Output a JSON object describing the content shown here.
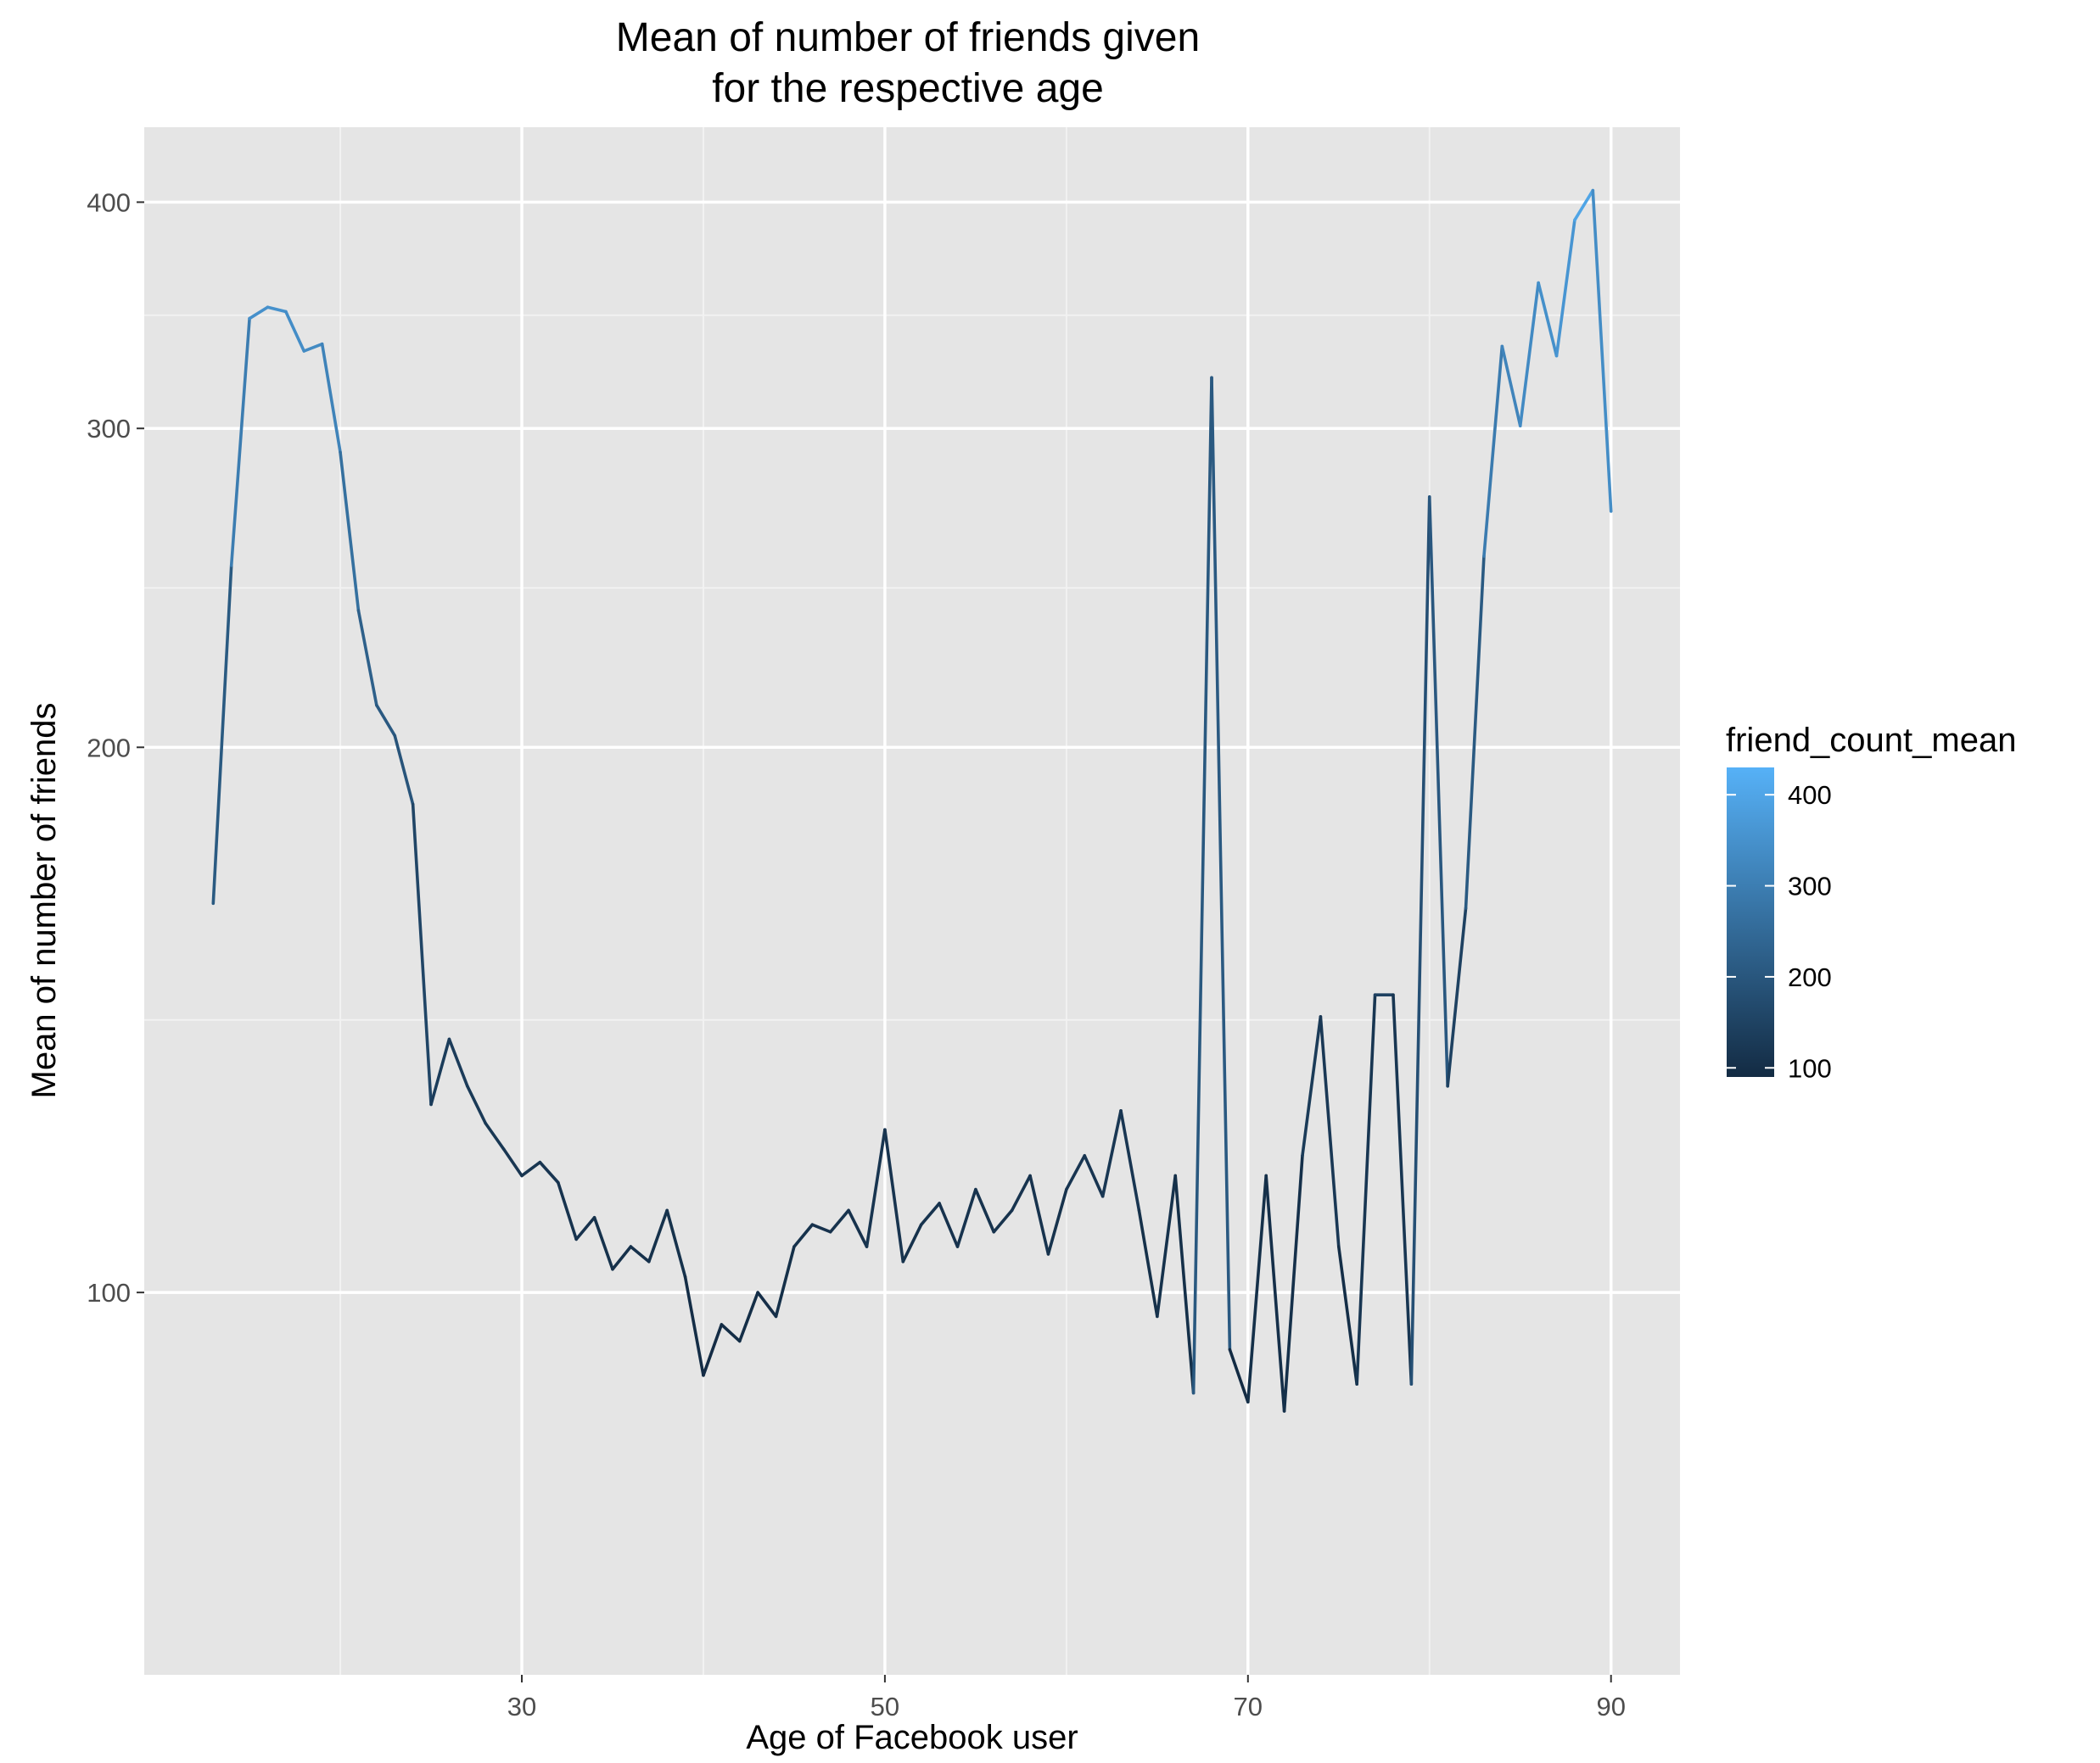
{
  "chart_data": {
    "type": "line",
    "title": [
      "Mean of number of friends given",
      "for the respective age"
    ],
    "xlabel": "Age of Facebook user",
    "ylabel": "Mean of number of friends",
    "y_scale": "log10",
    "xlim": [
      9.2,
      93.8
    ],
    "ylim": [
      61.5,
      440
    ],
    "x_ticks": [
      30,
      50,
      70,
      90
    ],
    "y_ticks": [
      100,
      200,
      300,
      400
    ],
    "grid": true,
    "background": "#e5e5e5",
    "legend": {
      "title": "friend_count_mean",
      "placement": "right",
      "labels": [
        100,
        200,
        300,
        400
      ],
      "color_low": "#132b43",
      "color_high": "#56b1f7",
      "range": [
        90,
        430
      ]
    },
    "series": [
      {
        "x": [
          13,
          14,
          15,
          16,
          17,
          18,
          19,
          20,
          21,
          22,
          23,
          24,
          25,
          26,
          27,
          28,
          29,
          30,
          31,
          32,
          33,
          34,
          35,
          36,
          37,
          38,
          39,
          40,
          41,
          42,
          43,
          44,
          45,
          46,
          47,
          48,
          49,
          50,
          51,
          52,
          53,
          54,
          55,
          56,
          57,
          58,
          59,
          60,
          61,
          62,
          63,
          64,
          65,
          66,
          67,
          68,
          69,
          70,
          71,
          72,
          73,
          74,
          75,
          76,
          77,
          78,
          79,
          80,
          81,
          82,
          83,
          84,
          85,
          86,
          87,
          88,
          89,
          90
        ],
        "y": [
          164,
          252,
          345,
          350,
          348,
          331,
          334,
          291,
          238,
          211,
          203,
          186,
          127,
          138,
          130,
          124,
          120,
          116,
          118,
          115,
          107,
          110,
          103,
          106,
          104,
          111,
          102,
          90,
          96,
          94,
          100,
          97,
          106,
          109,
          108,
          111,
          106,
          123,
          104,
          109,
          112,
          106,
          114,
          108,
          111,
          116,
          105,
          114,
          119,
          113,
          126,
          111,
          97,
          116,
          88,
          320,
          93,
          87,
          116,
          86,
          119,
          142,
          106,
          89,
          146,
          146,
          89,
          275,
          130,
          163,
          255,
          333,
          301,
          361,
          329,
          391,
          406,
          270
        ]
      }
    ]
  }
}
